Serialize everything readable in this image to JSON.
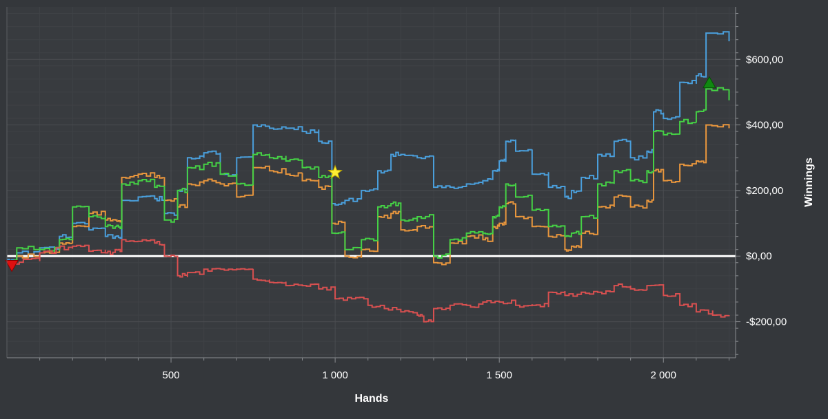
{
  "chart_data": {
    "type": "line",
    "title": "",
    "xlabel": "Hands",
    "ylabel": "Winnings",
    "xlim": [
      0,
      2220
    ],
    "ylim": [
      -310,
      760
    ],
    "x_ticks": [
      500,
      1000,
      1500,
      2000
    ],
    "x_tick_labels": [
      "500",
      "1 000",
      "1 500",
      "2 000"
    ],
    "y_ticks": [
      600,
      400,
      200,
      0,
      -200
    ],
    "y_tick_labels": [
      "$600,00",
      "$400,00",
      "$200,00",
      "$0,00",
      "-$200,00"
    ],
    "grid": true,
    "background_color": "#34373b",
    "plot_background_color": "#383b3f",
    "grid_color": "#4a4d51",
    "zero_line_color": "#ffffff",
    "series": [
      {
        "color": "#4a9fdc",
        "x": [
          0,
          30,
          100,
          160,
          200,
          250,
          300,
          330,
          350,
          400,
          450,
          480,
          520,
          550,
          600,
          650,
          700,
          750,
          800,
          850,
          900,
          950,
          990,
          1030,
          1080,
          1130,
          1170,
          1200,
          1250,
          1300,
          1350,
          1400,
          1450,
          1480,
          1500,
          1520,
          1550,
          1600,
          1650,
          1700,
          1720,
          1750,
          1800,
          1850,
          1900,
          1950,
          1970,
          2000,
          2050,
          2100,
          2130,
          2200
        ],
        "y": [
          -10,
          10,
          25,
          60,
          100,
          80,
          60,
          60,
          170,
          180,
          175,
          130,
          200,
          300,
          315,
          250,
          300,
          400,
          390,
          390,
          380,
          350,
          160,
          170,
          200,
          260,
          310,
          310,
          300,
          210,
          210,
          220,
          230,
          260,
          290,
          350,
          320,
          250,
          210,
          180,
          200,
          240,
          310,
          350,
          300,
          320,
          440,
          420,
          530,
          550,
          680,
          655
        ]
      },
      {
        "color": "#e8963d",
        "x": [
          0,
          30,
          100,
          160,
          200,
          250,
          300,
          330,
          350,
          400,
          450,
          480,
          520,
          550,
          600,
          650,
          700,
          750,
          800,
          850,
          900,
          950,
          990,
          1030,
          1080,
          1130,
          1170,
          1200,
          1250,
          1300,
          1350,
          1400,
          1450,
          1480,
          1500,
          1520,
          1550,
          1600,
          1650,
          1700,
          1720,
          1750,
          1800,
          1850,
          1900,
          1950,
          1970,
          2000,
          2050,
          2100,
          2130,
          2200
        ],
        "y": [
          -20,
          0,
          10,
          40,
          90,
          130,
          110,
          110,
          240,
          250,
          240,
          170,
          150,
          220,
          230,
          220,
          180,
          270,
          260,
          250,
          230,
          210,
          100,
          0,
          20,
          120,
          130,
          80,
          90,
          -20,
          40,
          60,
          50,
          90,
          100,
          160,
          120,
          90,
          60,
          20,
          30,
          70,
          150,
          180,
          150,
          170,
          260,
          230,
          280,
          290,
          400,
          390
        ]
      },
      {
        "color": "#45d145",
        "x": [
          0,
          30,
          100,
          160,
          200,
          250,
          300,
          330,
          350,
          400,
          450,
          480,
          520,
          550,
          600,
          650,
          700,
          750,
          800,
          850,
          900,
          950,
          990,
          1030,
          1080,
          1130,
          1170,
          1200,
          1250,
          1300,
          1350,
          1400,
          1450,
          1480,
          1500,
          1520,
          1550,
          1600,
          1650,
          1700,
          1720,
          1750,
          1800,
          1850,
          1900,
          1950,
          1970,
          2000,
          2050,
          2100,
          2130,
          2200
        ],
        "y": [
          -15,
          25,
          20,
          50,
          150,
          120,
          90,
          90,
          220,
          230,
          210,
          110,
          200,
          270,
          280,
          250,
          220,
          310,
          300,
          290,
          270,
          240,
          70,
          20,
          50,
          150,
          160,
          110,
          120,
          0,
          50,
          70,
          70,
          120,
          150,
          220,
          180,
          140,
          90,
          60,
          70,
          120,
          220,
          260,
          230,
          260,
          380,
          370,
          410,
          440,
          510,
          475
        ]
      },
      {
        "color": "#d95050",
        "x": [
          0,
          50,
          100,
          150,
          200,
          250,
          300,
          330,
          350,
          400,
          450,
          480,
          520,
          550,
          600,
          650,
          700,
          750,
          800,
          850,
          900,
          950,
          1000,
          1050,
          1100,
          1150,
          1200,
          1250,
          1270,
          1300,
          1350,
          1400,
          1450,
          1500,
          1550,
          1600,
          1650,
          1700,
          1750,
          1800,
          1850,
          1900,
          1950,
          2000,
          2050,
          2100,
          2150,
          2200
        ],
        "y": [
          -20,
          -10,
          10,
          25,
          30,
          15,
          10,
          20,
          50,
          45,
          40,
          0,
          -60,
          -50,
          -40,
          -40,
          -40,
          -70,
          -80,
          -90,
          -90,
          -100,
          -130,
          -130,
          -150,
          -160,
          -170,
          -180,
          -200,
          -160,
          -150,
          -150,
          -140,
          -140,
          -150,
          -150,
          -110,
          -120,
          -110,
          -110,
          -90,
          -100,
          -90,
          -120,
          -150,
          -170,
          -180,
          -180
        ]
      }
    ],
    "markers": [
      {
        "shape": "triangle-down",
        "x": 15,
        "y": -30,
        "color": "#e01010"
      },
      {
        "shape": "star",
        "x": 1000,
        "y": 255,
        "color": "#ffee33"
      },
      {
        "shape": "triangle-up",
        "x": 2140,
        "y": 530,
        "color": "#108810"
      }
    ]
  }
}
